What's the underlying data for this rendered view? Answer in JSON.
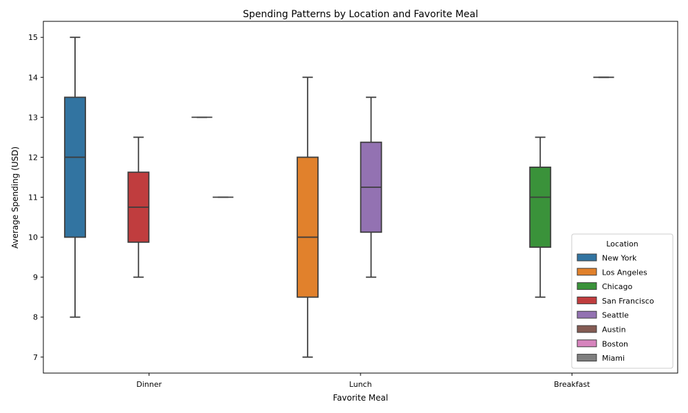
{
  "chart_data": {
    "type": "box",
    "title": "Spending Patterns by Location and Favorite Meal",
    "xlabel": "Favorite Meal",
    "ylabel": "Average Spending (USD)",
    "categories": [
      "Dinner",
      "Lunch",
      "Breakfast"
    ],
    "ylim": [
      6.6,
      15.4
    ],
    "yticks": [
      7,
      8,
      9,
      10,
      11,
      12,
      13,
      14,
      15
    ],
    "grid": false,
    "legend": {
      "title": "Location",
      "placement": "lower-right",
      "entries": [
        "New York",
        "Los Angeles",
        "Chicago",
        "San Francisco",
        "Seattle",
        "Austin",
        "Boston",
        "Miami"
      ]
    },
    "colors": {
      "New York": "#3274a1",
      "Los Angeles": "#e1812c",
      "Chicago": "#3a923a",
      "San Francisco": "#c03d3e",
      "Seattle": "#9372b2",
      "Austin": "#845b53",
      "Boston": "#d684bd",
      "Miami": "#7f7f7f"
    },
    "boxes": [
      {
        "category": "Dinner",
        "location": "New York",
        "min": 8,
        "q1": 10,
        "median": 12,
        "q3": 13.5,
        "max": 15
      },
      {
        "category": "Dinner",
        "location": "San Francisco",
        "min": 9,
        "q1": 9.875,
        "median": 10.75,
        "q3": 11.625,
        "max": 12.5
      },
      {
        "category": "Dinner",
        "location": "Boston",
        "min": 13,
        "q1": 13,
        "median": 13,
        "q3": 13,
        "max": 13
      },
      {
        "category": "Dinner",
        "location": "Miami",
        "min": 11,
        "q1": 11,
        "median": 11,
        "q3": 11,
        "max": 11
      },
      {
        "category": "Lunch",
        "location": "Los Angeles",
        "min": 7,
        "q1": 8.5,
        "median": 10,
        "q3": 12,
        "max": 14
      },
      {
        "category": "Lunch",
        "location": "Seattle",
        "min": 9,
        "q1": 10.125,
        "median": 11.25,
        "q3": 12.375,
        "max": 13.5
      },
      {
        "category": "Breakfast",
        "location": "Chicago",
        "min": 8.5,
        "q1": 9.75,
        "median": 11,
        "q3": 11.75,
        "max": 12.5
      },
      {
        "category": "Breakfast",
        "location": "Austin",
        "min": 14,
        "q1": 14,
        "median": 14,
        "q3": 14,
        "max": 14
      }
    ]
  }
}
